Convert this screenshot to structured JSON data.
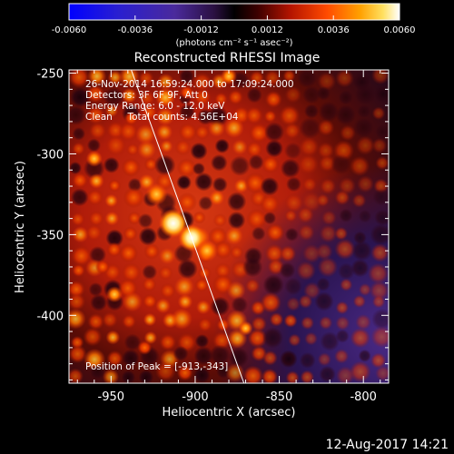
{
  "colorbar": {
    "tick_labels": [
      "-0.0060",
      "-0.0036",
      "-0.0012",
      "0.0012",
      "0.0036",
      "0.0060"
    ],
    "units_label": "(photons cm⁻² s⁻¹ asec⁻²)",
    "min": -0.006,
    "max": 0.006
  },
  "title": "Reconstructed RHESSI Image",
  "info_lines": [
    "26-Nov-2014 16:59:24.000 to 17:09:24.000",
    "Detectors: 3F 6F 9F, Att 0",
    "Energy Range: 6.0 - 12.0 keV",
    "Clean     Total counts: 4.56E+04"
  ],
  "peak_label": "Position of Peak = [-913,-343]",
  "x_axis": {
    "title": "Heliocentric X (arcsec)",
    "ticks": [
      -950,
      -900,
      -850,
      -800
    ],
    "tick_labels": [
      "-950",
      "-900",
      "-850",
      "-800"
    ],
    "range": [
      -975,
      -785
    ]
  },
  "y_axis": {
    "title": "Heliocentric Y (arcsec)",
    "ticks": [
      -250,
      -300,
      -350,
      -400
    ],
    "tick_labels": [
      "-250",
      "-300",
      "-350",
      "-400"
    ],
    "range": [
      -442,
      -248
    ]
  },
  "limb_line": {
    "points": [
      [
        -938,
        -248
      ],
      [
        -871,
        -442
      ]
    ]
  },
  "bottom_timestamp": "12-Aug-2017 14:21",
  "colors": {
    "background": "#000000",
    "text": "#ffffff",
    "limb": "#ffffff"
  }
}
